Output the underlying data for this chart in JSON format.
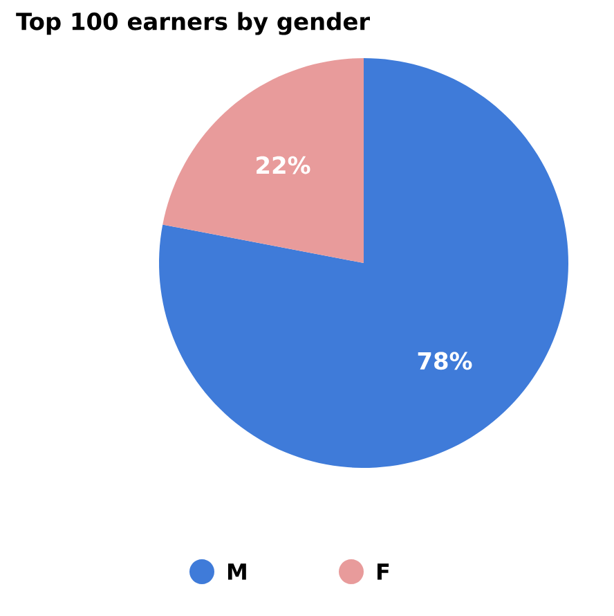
{
  "chart_data": {
    "type": "pie",
    "title": "Top 100 earners by gender",
    "categories": [
      "M",
      "F"
    ],
    "values": [
      78,
      22
    ],
    "colors": [
      "#3f7bd9",
      "#e89b9b"
    ],
    "value_labels": [
      "78%",
      "22%"
    ],
    "legend": "bottom"
  }
}
